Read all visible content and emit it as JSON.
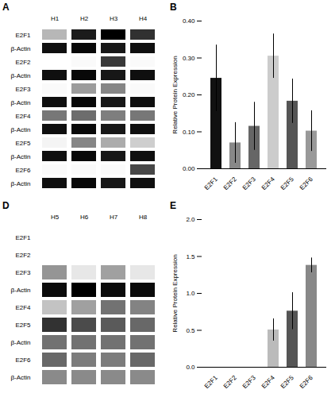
{
  "chart_data": [
    {
      "type": "heatmap",
      "title": "A",
      "x": [
        "H1",
        "H2",
        "H3",
        "H4"
      ],
      "y": [
        "E2F1",
        "β-Actin",
        "E2F2",
        "β-Actin",
        "E2F3",
        "β-Actin",
        "E2F4",
        "β-Actin",
        "E2F5",
        "β-Actin",
        "E2F6",
        "β-Actin"
      ],
      "cells": [
        [
          0.35,
          0.75,
          0.82,
          0.7
        ],
        [
          0.78,
          0.8,
          0.76,
          0.78
        ],
        [
          0.05,
          0.08,
          0.68,
          0.08
        ],
        [
          0.78,
          0.8,
          0.76,
          0.78
        ],
        [
          0.08,
          0.42,
          0.48,
          0.08
        ],
        [
          0.78,
          0.8,
          0.76,
          0.78
        ],
        [
          0.52,
          0.55,
          0.5,
          0.52
        ],
        [
          0.78,
          0.8,
          0.76,
          0.78
        ],
        [
          0.12,
          0.48,
          0.38,
          0.28
        ],
        [
          0.78,
          0.8,
          0.76,
          0.78
        ],
        [
          0.08,
          0.08,
          0.08,
          0.65
        ],
        [
          0.78,
          0.8,
          0.76,
          0.78
        ]
      ]
    },
    {
      "type": "bar",
      "title": "B",
      "categories": [
        "E2F1",
        "E2F2",
        "E2F3",
        "E2F4",
        "E2F5",
        "E2F6"
      ],
      "values": [
        0.245,
        0.07,
        0.115,
        0.305,
        0.183,
        0.102
      ],
      "errors": [
        0.09,
        0.055,
        0.065,
        0.06,
        0.06,
        0.055
      ],
      "colors": [
        "#111111",
        "#888888",
        "#666666",
        "#cccccc",
        "#555555",
        "#999999"
      ],
      "ylabel": "Relative Protein Expression",
      "ylim": [
        0,
        0.4
      ],
      "yticks": [
        0,
        0.1,
        0.2,
        0.3,
        0.4
      ]
    },
    {
      "type": "heatmap",
      "title": "D",
      "x": [
        "H5",
        "H6",
        "H7",
        "H8"
      ],
      "y": [
        "E2F1",
        "E2F2",
        "E2F3",
        "β-Actin",
        "E2F4",
        "E2F5",
        "β-Actin",
        "E2F6",
        "β-Actin"
      ],
      "cells": [
        [
          0.04,
          0.04,
          0.04,
          0.04
        ],
        [
          0.04,
          0.04,
          0.04,
          0.04
        ],
        [
          0.45,
          0.18,
          0.42,
          0.18
        ],
        [
          0.82,
          0.85,
          0.82,
          0.82
        ],
        [
          0.32,
          0.42,
          0.55,
          0.5
        ],
        [
          0.72,
          0.66,
          0.62,
          0.58
        ],
        [
          0.55,
          0.55,
          0.55,
          0.55
        ],
        [
          0.58,
          0.52,
          0.52,
          0.58
        ],
        [
          0.48,
          0.48,
          0.48,
          0.48
        ]
      ]
    },
    {
      "type": "bar",
      "title": "E",
      "categories": [
        "E2F1",
        "E2F2",
        "E2F3",
        "E2F4",
        "E2F5",
        "E2F6"
      ],
      "values": [
        0.0,
        0.0,
        0.0,
        0.505,
        0.76,
        1.38
      ],
      "errors": [
        0.0,
        0.0,
        0.0,
        0.15,
        0.25,
        0.1
      ],
      "colors": [
        "#cccccc",
        "#cccccc",
        "#cccccc",
        "#bbbbbb",
        "#555555",
        "#888888"
      ],
      "ylabel": "Relative Protein Expression",
      "ylim": [
        0,
        2.0
      ],
      "yticks": [
        0,
        0.5,
        1.0,
        1.5,
        2.0
      ]
    }
  ]
}
